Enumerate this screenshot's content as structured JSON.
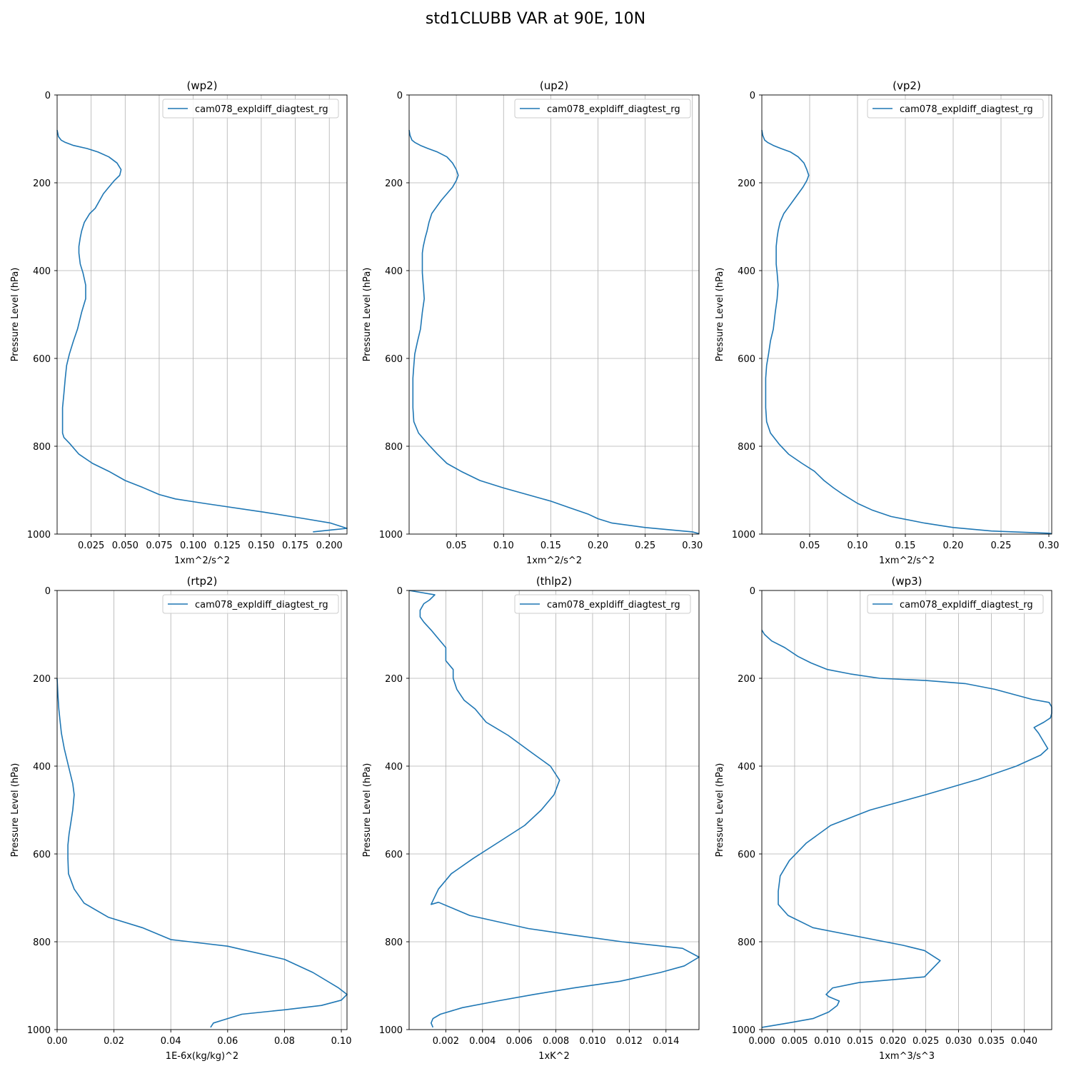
{
  "figure": {
    "title": "std1CLUBB VAR at 90E, 10N",
    "series_color": "#1f77b4"
  },
  "chart_data": [
    {
      "type": "line",
      "title": "(wp2)",
      "xlabel": "1xm^2/s^2",
      "ylabel": "Pressure Level (hPa)",
      "xlim": [
        0.0,
        0.213
      ],
      "ylim": [
        1000,
        0
      ],
      "xticks": [
        0.025,
        0.05,
        0.075,
        0.1,
        0.125,
        0.15,
        0.175,
        0.2
      ],
      "xticklabels": [
        "0.025",
        "0.050",
        "0.075",
        "0.100",
        "0.125",
        "0.150",
        "0.175",
        "0.200"
      ],
      "yticks": [
        0,
        200,
        400,
        600,
        800,
        1000
      ],
      "yticklabels": [
        "0",
        "200",
        "400",
        "600",
        "800",
        "1000"
      ],
      "grid": true,
      "legend": "upper right",
      "series": [
        {
          "name": "cam078_expldiff_diagtest_rg",
          "x": [
            0.0,
            0.001,
            0.003,
            0.006,
            0.012,
            0.022,
            0.03,
            0.038,
            0.044,
            0.047,
            0.046,
            0.042,
            0.038,
            0.034,
            0.028,
            0.024,
            0.02,
            0.018,
            0.017,
            0.016,
            0.016,
            0.017,
            0.019,
            0.021,
            0.021,
            0.018,
            0.015,
            0.012,
            0.009,
            0.007,
            0.006,
            0.005,
            0.004,
            0.004,
            0.004,
            0.005,
            0.009,
            0.016,
            0.026,
            0.038,
            0.05,
            0.063,
            0.075,
            0.087,
            0.108,
            0.152,
            0.182,
            0.201,
            0.213,
            0.203,
            0.188
          ],
          "y": [
            80,
            95,
            103,
            108,
            115,
            122,
            130,
            141,
            155,
            170,
            183,
            195,
            210,
            225,
            258,
            270,
            290,
            310,
            325,
            345,
            360,
            385,
            405,
            433,
            464,
            495,
            533,
            560,
            590,
            616,
            645,
            680,
            712,
            744,
            770,
            780,
            793,
            818,
            839,
            857,
            878,
            894,
            910,
            920,
            930,
            950,
            965,
            975,
            987,
            990,
            995
          ]
        }
      ]
    },
    {
      "type": "line",
      "title": "(up2)",
      "xlabel": "1xm^2/s^2",
      "ylabel": "Pressure Level (hPa)",
      "xlim": [
        0.0,
        0.307
      ],
      "ylim": [
        1000,
        0
      ],
      "xticks": [
        0.05,
        0.1,
        0.15,
        0.2,
        0.25,
        0.3
      ],
      "xticklabels": [
        "0.05",
        "0.10",
        "0.15",
        "0.20",
        "0.25",
        "0.30"
      ],
      "yticks": [
        0,
        200,
        400,
        600,
        800,
        1000
      ],
      "yticklabels": [
        "0",
        "200",
        "400",
        "600",
        "800",
        "1000"
      ],
      "grid": true,
      "legend": "upper right",
      "series": [
        {
          "name": "cam078_expldiff_diagtest_rg",
          "x": [
            0.0,
            0.001,
            0.003,
            0.006,
            0.012,
            0.02,
            0.03,
            0.04,
            0.046,
            0.05,
            0.052,
            0.05,
            0.046,
            0.04,
            0.034,
            0.028,
            0.024,
            0.021,
            0.019,
            0.017,
            0.015,
            0.014,
            0.014,
            0.014,
            0.015,
            0.016,
            0.014,
            0.012,
            0.009,
            0.006,
            0.005,
            0.004,
            0.004,
            0.004,
            0.005,
            0.01,
            0.02,
            0.03,
            0.04,
            0.055,
            0.075,
            0.1,
            0.125,
            0.15,
            0.17,
            0.19,
            0.2,
            0.215,
            0.25,
            0.3,
            0.307
          ],
          "y": [
            80,
            92,
            103,
            108,
            115,
            122,
            130,
            141,
            155,
            170,
            183,
            195,
            210,
            225,
            240,
            258,
            270,
            290,
            310,
            325,
            345,
            360,
            385,
            405,
            433,
            464,
            495,
            533,
            560,
            590,
            616,
            645,
            680,
            712,
            744,
            770,
            795,
            818,
            839,
            857,
            878,
            895,
            910,
            925,
            940,
            955,
            965,
            975,
            985,
            995,
            999
          ]
        }
      ]
    },
    {
      "type": "line",
      "title": "(vp2)",
      "xlabel": "1xm^2/s^2",
      "ylabel": "Pressure Level (hPa)",
      "xlim": [
        0.0,
        0.303
      ],
      "ylim": [
        1000,
        0
      ],
      "xticks": [
        0.05,
        0.1,
        0.15,
        0.2,
        0.25,
        0.3
      ],
      "xticklabels": [
        "0.05",
        "0.10",
        "0.15",
        "0.20",
        "0.25",
        "0.30"
      ],
      "yticks": [
        0,
        200,
        400,
        600,
        800,
        1000
      ],
      "yticklabels": [
        "0",
        "200",
        "400",
        "600",
        "800",
        "1000"
      ],
      "grid": true,
      "legend": "upper right",
      "series": [
        {
          "name": "cam078_expldiff_diagtest_rg",
          "x": [
            0.0,
            0.001,
            0.003,
            0.006,
            0.012,
            0.02,
            0.03,
            0.038,
            0.044,
            0.047,
            0.049,
            0.047,
            0.043,
            0.038,
            0.033,
            0.027,
            0.023,
            0.019,
            0.017,
            0.016,
            0.015,
            0.015,
            0.015,
            0.016,
            0.017,
            0.016,
            0.014,
            0.012,
            0.009,
            0.007,
            0.005,
            0.004,
            0.004,
            0.004,
            0.005,
            0.009,
            0.018,
            0.028,
            0.042,
            0.055,
            0.065,
            0.075,
            0.085,
            0.1,
            0.115,
            0.135,
            0.17,
            0.2,
            0.24,
            0.3,
            0.303
          ],
          "y": [
            80,
            92,
            103,
            108,
            115,
            122,
            130,
            141,
            155,
            170,
            183,
            195,
            210,
            225,
            240,
            258,
            270,
            290,
            310,
            325,
            345,
            360,
            385,
            405,
            433,
            464,
            495,
            533,
            560,
            590,
            616,
            645,
            680,
            712,
            744,
            770,
            795,
            818,
            839,
            857,
            878,
            895,
            910,
            930,
            945,
            960,
            975,
            985,
            993,
            998,
            999
          ]
        }
      ]
    },
    {
      "type": "line",
      "title": "(rtp2)",
      "xlabel": "1E-6x(kg/kg)^2",
      "ylabel": "Pressure Level (hPa)",
      "xlim": [
        0.0,
        0.102
      ],
      "ylim": [
        1000,
        0
      ],
      "xticks": [
        0.0,
        0.02,
        0.04,
        0.06,
        0.08,
        0.1
      ],
      "xticklabels": [
        "0.00",
        "0.02",
        "0.04",
        "0.06",
        "0.08",
        "0.10"
      ],
      "yticks": [
        0,
        200,
        400,
        600,
        800,
        1000
      ],
      "yticklabels": [
        "0",
        "200",
        "400",
        "600",
        "800",
        "1000"
      ],
      "grid": true,
      "legend": "upper right",
      "series": [
        {
          "name": "cam078_expldiff_diagtest_rg",
          "x": [
            0.0,
            0.0003,
            0.0006,
            0.001,
            0.0015,
            0.0025,
            0.004,
            0.0055,
            0.006,
            0.0055,
            0.0048,
            0.0042,
            0.0038,
            0.0038,
            0.004,
            0.006,
            0.0095,
            0.018,
            0.03,
            0.04,
            0.06,
            0.08,
            0.09,
            0.099,
            0.102,
            0.1,
            0.093,
            0.08,
            0.065,
            0.06,
            0.055,
            0.054
          ],
          "y": [
            200,
            240,
            270,
            295,
            325,
            360,
            400,
            440,
            465,
            500,
            530,
            555,
            580,
            610,
            645,
            680,
            712,
            744,
            768,
            795,
            810,
            840,
            870,
            905,
            920,
            933,
            945,
            955,
            965,
            975,
            985,
            995
          ]
        }
      ]
    },
    {
      "type": "line",
      "title": "(thlp2)",
      "xlabel": "1xK^2",
      "ylabel": "Pressure Level (hPa)",
      "xlim": [
        0.0,
        0.0158
      ],
      "ylim": [
        1000,
        0
      ],
      "xticks": [
        0.002,
        0.004,
        0.006,
        0.008,
        0.01,
        0.012,
        0.014
      ],
      "xticklabels": [
        "0.002",
        "0.004",
        "0.006",
        "0.008",
        "0.010",
        "0.012",
        "0.014"
      ],
      "yticks": [
        0,
        200,
        400,
        600,
        800,
        1000
      ],
      "yticklabels": [
        "0",
        "200",
        "400",
        "600",
        "800",
        "1000"
      ],
      "grid": true,
      "legend": "upper right",
      "series": [
        {
          "name": "cam078_expldiff_diagtest_rg",
          "x": [
            0.0,
            0.0014,
            0.0011,
            0.0008,
            0.0006,
            0.0006,
            0.0008,
            0.0012,
            0.0015,
            0.002,
            0.002,
            0.0024,
            0.0024,
            0.0026,
            0.003,
            0.0036,
            0.0042,
            0.0054,
            0.0067,
            0.0077,
            0.0082,
            0.0079,
            0.0072,
            0.0063,
            0.005,
            0.0035,
            0.0023,
            0.0016,
            0.0012,
            0.0016,
            0.0033,
            0.0065,
            0.009,
            0.0116,
            0.0149,
            0.0158,
            0.015,
            0.0137,
            0.0115,
            0.009,
            0.0068,
            0.0048,
            0.0029,
            0.0017,
            0.0013,
            0.0012,
            0.0013
          ],
          "y": [
            0,
            10,
            22,
            30,
            45,
            60,
            72,
            90,
            105,
            130,
            160,
            180,
            200,
            225,
            250,
            270,
            300,
            330,
            370,
            400,
            432,
            465,
            500,
            535,
            570,
            610,
            645,
            680,
            715,
            710,
            740,
            770,
            785,
            800,
            815,
            835,
            855,
            870,
            890,
            905,
            920,
            935,
            950,
            965,
            975,
            985,
            995
          ]
        }
      ]
    },
    {
      "type": "line",
      "title": "(wp3)",
      "xlabel": "1xm^3/s^3",
      "ylabel": "Pressure Level (hPa)",
      "xlim": [
        0.0,
        0.0442
      ],
      "ylim": [
        1000,
        0
      ],
      "xticks": [
        0.0,
        0.005,
        0.01,
        0.015,
        0.02,
        0.025,
        0.03,
        0.035,
        0.04
      ],
      "xticklabels": [
        "0.000",
        "0.005",
        "0.010",
        "0.015",
        "0.020",
        "0.025",
        "0.030",
        "0.035",
        "0.040"
      ],
      "yticks": [
        0,
        200,
        400,
        600,
        800,
        1000
      ],
      "yticklabels": [
        "0",
        "200",
        "400",
        "600",
        "800",
        "1000"
      ],
      "grid": true,
      "legend": "upper right",
      "series": [
        {
          "name": "cam078_expldiff_diagtest_rg",
          "x": [
            0.0,
            0.0004,
            0.0015,
            0.0035,
            0.0055,
            0.0075,
            0.01,
            0.0135,
            0.018,
            0.025,
            0.031,
            0.0355,
            0.0412,
            0.0438,
            0.0442,
            0.0442,
            0.044,
            0.043,
            0.0415,
            0.0422,
            0.0428,
            0.0436,
            0.0425,
            0.0388,
            0.033,
            0.025,
            0.0165,
            0.0105,
            0.0068,
            0.0042,
            0.0028,
            0.0025,
            0.0025,
            0.004,
            0.0078,
            0.0215,
            0.0248,
            0.0272,
            0.0248,
            0.0148,
            0.0108,
            0.0098,
            0.0102,
            0.0118,
            0.0115,
            0.0102,
            0.0078,
            0.004,
            0.0
          ],
          "y": [
            90,
            100,
            115,
            130,
            150,
            165,
            180,
            190,
            200,
            205,
            212,
            225,
            248,
            255,
            265,
            280,
            290,
            300,
            312,
            325,
            340,
            360,
            375,
            400,
            430,
            465,
            500,
            535,
            575,
            615,
            650,
            685,
            715,
            740,
            768,
            808,
            820,
            843,
            880,
            893,
            905,
            920,
            925,
            935,
            945,
            960,
            975,
            985,
            995
          ]
        }
      ]
    }
  ]
}
